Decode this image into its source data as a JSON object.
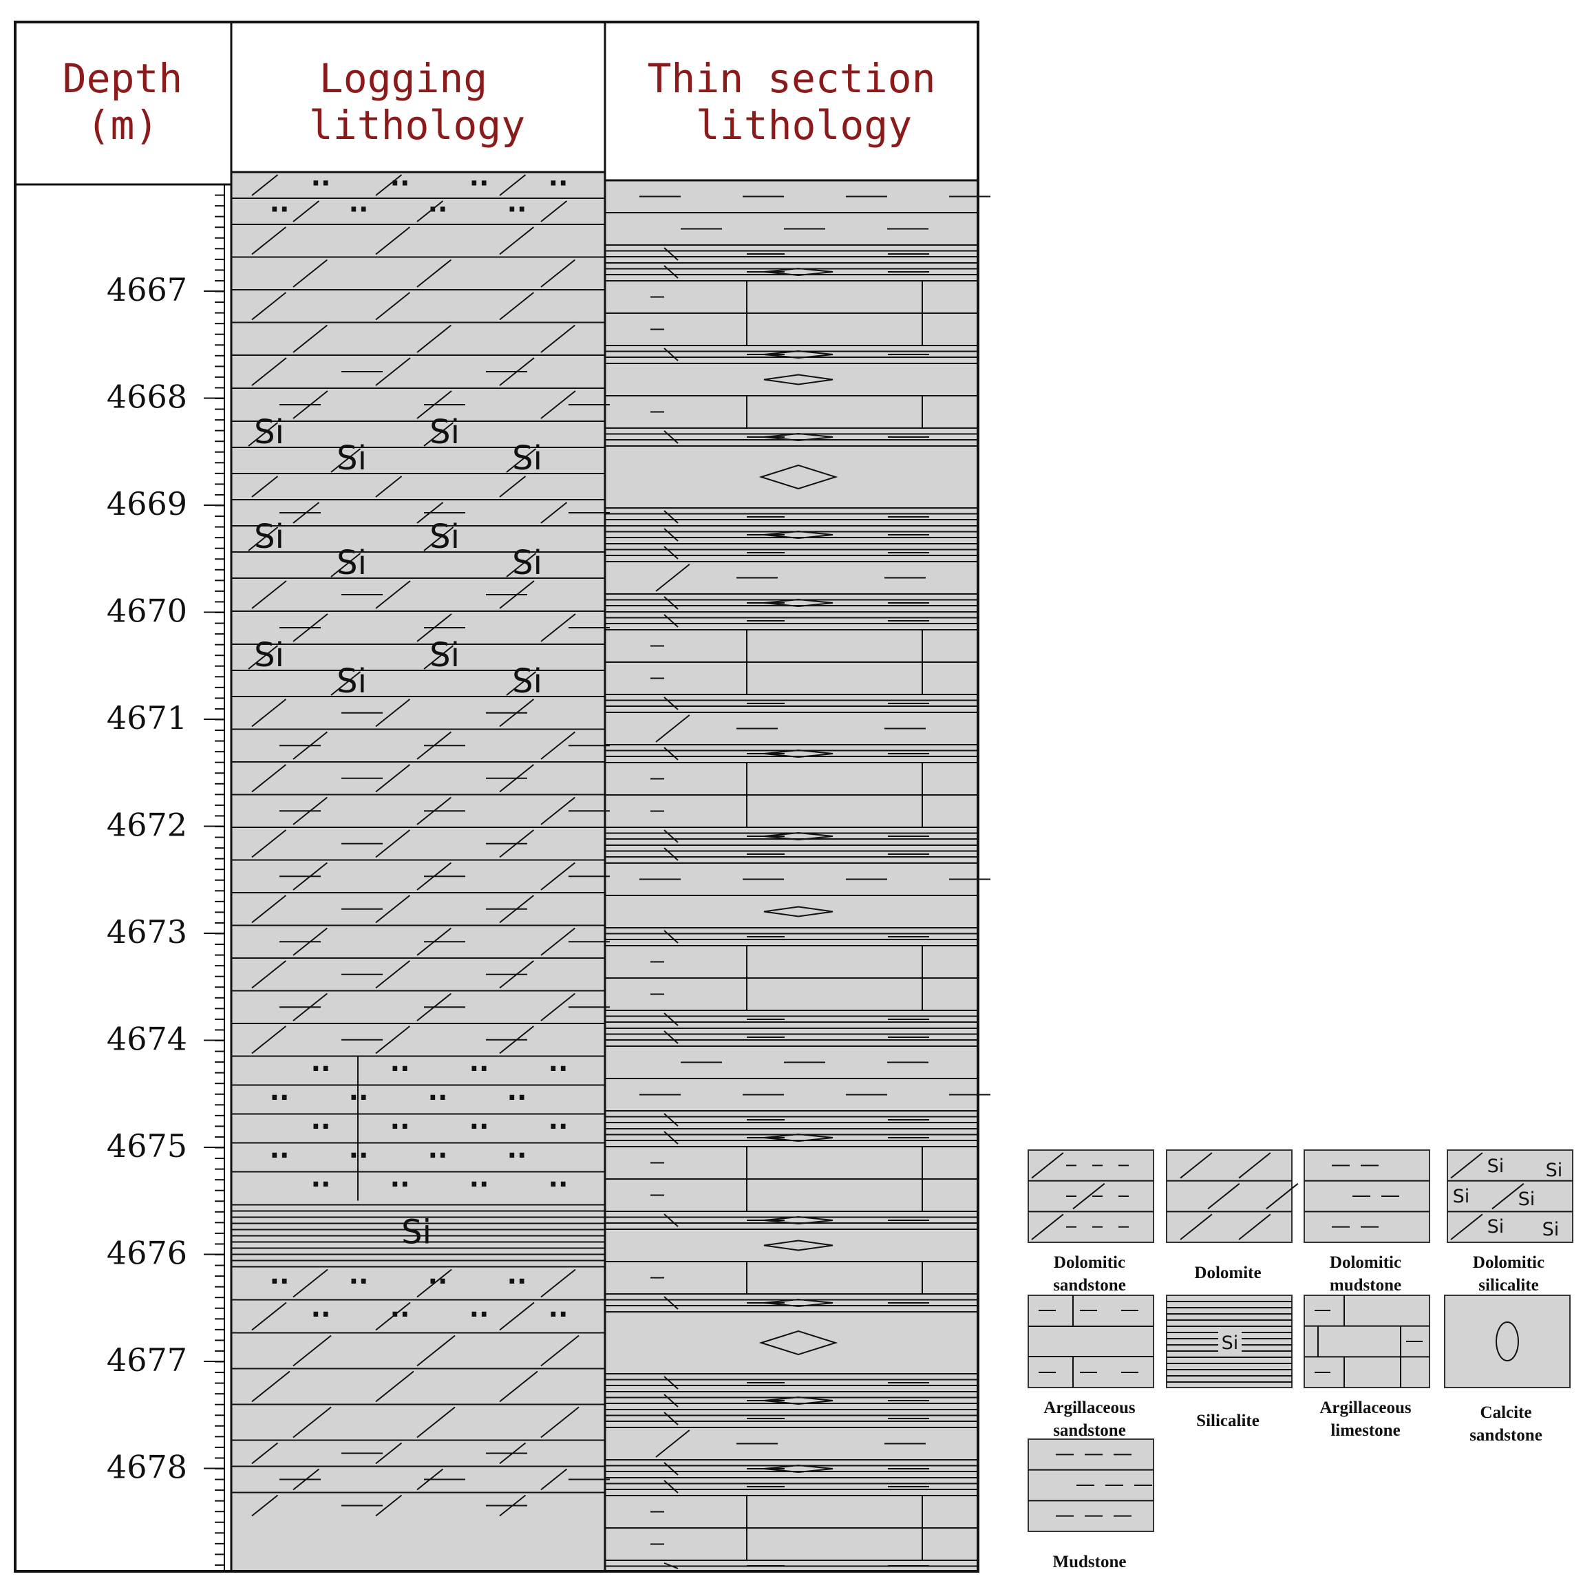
{
  "headers": {
    "depth": [
      "Depth",
      "(m)"
    ],
    "logging": [
      "Logging",
      "lithology"
    ],
    "thin": [
      "Thin section",
      "lithology"
    ]
  },
  "depth_axis": {
    "labels": [
      "4667",
      "4668",
      "4669",
      "4670",
      "4671",
      "4672",
      "4673",
      "4674",
      "4675",
      "4676",
      "4677",
      "4678"
    ]
  },
  "symbol_text": {
    "si": "Si",
    "dots": "··"
  },
  "legend": [
    {
      "id": "dolomitic-sandstone",
      "lines": [
        "Dolomitic",
        "sandstone"
      ]
    },
    {
      "id": "dolomite",
      "lines": [
        "Dolomite"
      ]
    },
    {
      "id": "dolomitic-mudstone",
      "lines": [
        "Dolomitic",
        "mudstone"
      ]
    },
    {
      "id": "dolomitic-silicalite",
      "lines": [
        "Dolomitic",
        "silicalite"
      ]
    },
    {
      "id": "argillaceous-sandstone",
      "lines": [
        "Argillaceous",
        "sandstone"
      ]
    },
    {
      "id": "silicalite",
      "lines": [
        "Silicalite"
      ]
    },
    {
      "id": "argillaceous-limestone",
      "lines": [
        "Argillaceous",
        "limestone"
      ]
    },
    {
      "id": "calcite-sandstone",
      "lines": [
        "Calcite",
        "sandstone"
      ]
    },
    {
      "id": "mudstone",
      "lines": [
        "Mudstone"
      ]
    }
  ],
  "colors": {
    "fill": "#d3d3d3",
    "header_text": "#8b1a1a",
    "ink": "#111111"
  }
}
